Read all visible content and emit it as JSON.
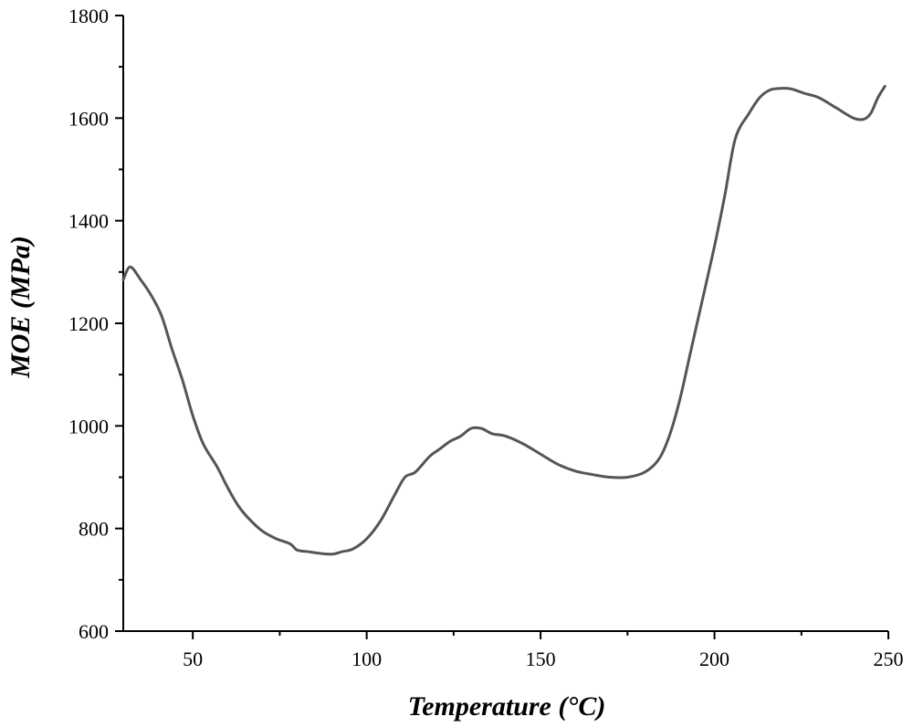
{
  "chart_data": {
    "type": "line",
    "title": "",
    "xlabel": "Temperature (°C)",
    "ylabel": "MOE (MPa)",
    "xlim": [
      30,
      250
    ],
    "ylim": [
      600,
      1800
    ],
    "xticks": [
      50,
      100,
      150,
      200,
      250
    ],
    "yticks": [
      600,
      800,
      1000,
      1200,
      1400,
      1600,
      1800
    ],
    "xminor": [
      75,
      125,
      175,
      225
    ],
    "yminor": [
      700,
      900,
      1100,
      1300,
      1500,
      1700
    ],
    "grid": false,
    "legend": "none",
    "line_color": "#555555",
    "series": [
      {
        "name": "MOE",
        "x": [
          30,
          32,
          35,
          38,
          41,
          44,
          47,
          50,
          53,
          57,
          60,
          63,
          66,
          70,
          74,
          78,
          80,
          83,
          86,
          90,
          93,
          96,
          100,
          104,
          108,
          111,
          114,
          118,
          121,
          124,
          127,
          130,
          133,
          136,
          140,
          145,
          150,
          155,
          160,
          165,
          170,
          175,
          180,
          184,
          187,
          190,
          193,
          196,
          200,
          203,
          206,
          210,
          213,
          216,
          219,
          222,
          226,
          230,
          235,
          240,
          243,
          245,
          247,
          249
        ],
        "y": [
          1285,
          1310,
          1285,
          1255,
          1215,
          1150,
          1090,
          1020,
          965,
          920,
          880,
          845,
          820,
          795,
          780,
          770,
          758,
          755,
          752,
          750,
          755,
          760,
          780,
          815,
          865,
          900,
          910,
          940,
          955,
          970,
          980,
          995,
          995,
          985,
          980,
          965,
          945,
          925,
          912,
          905,
          900,
          900,
          910,
          935,
          980,
          1050,
          1140,
          1230,
          1350,
          1450,
          1560,
          1610,
          1640,
          1655,
          1658,
          1657,
          1648,
          1640,
          1620,
          1600,
          1598,
          1610,
          1640,
          1662
        ]
      }
    ]
  }
}
